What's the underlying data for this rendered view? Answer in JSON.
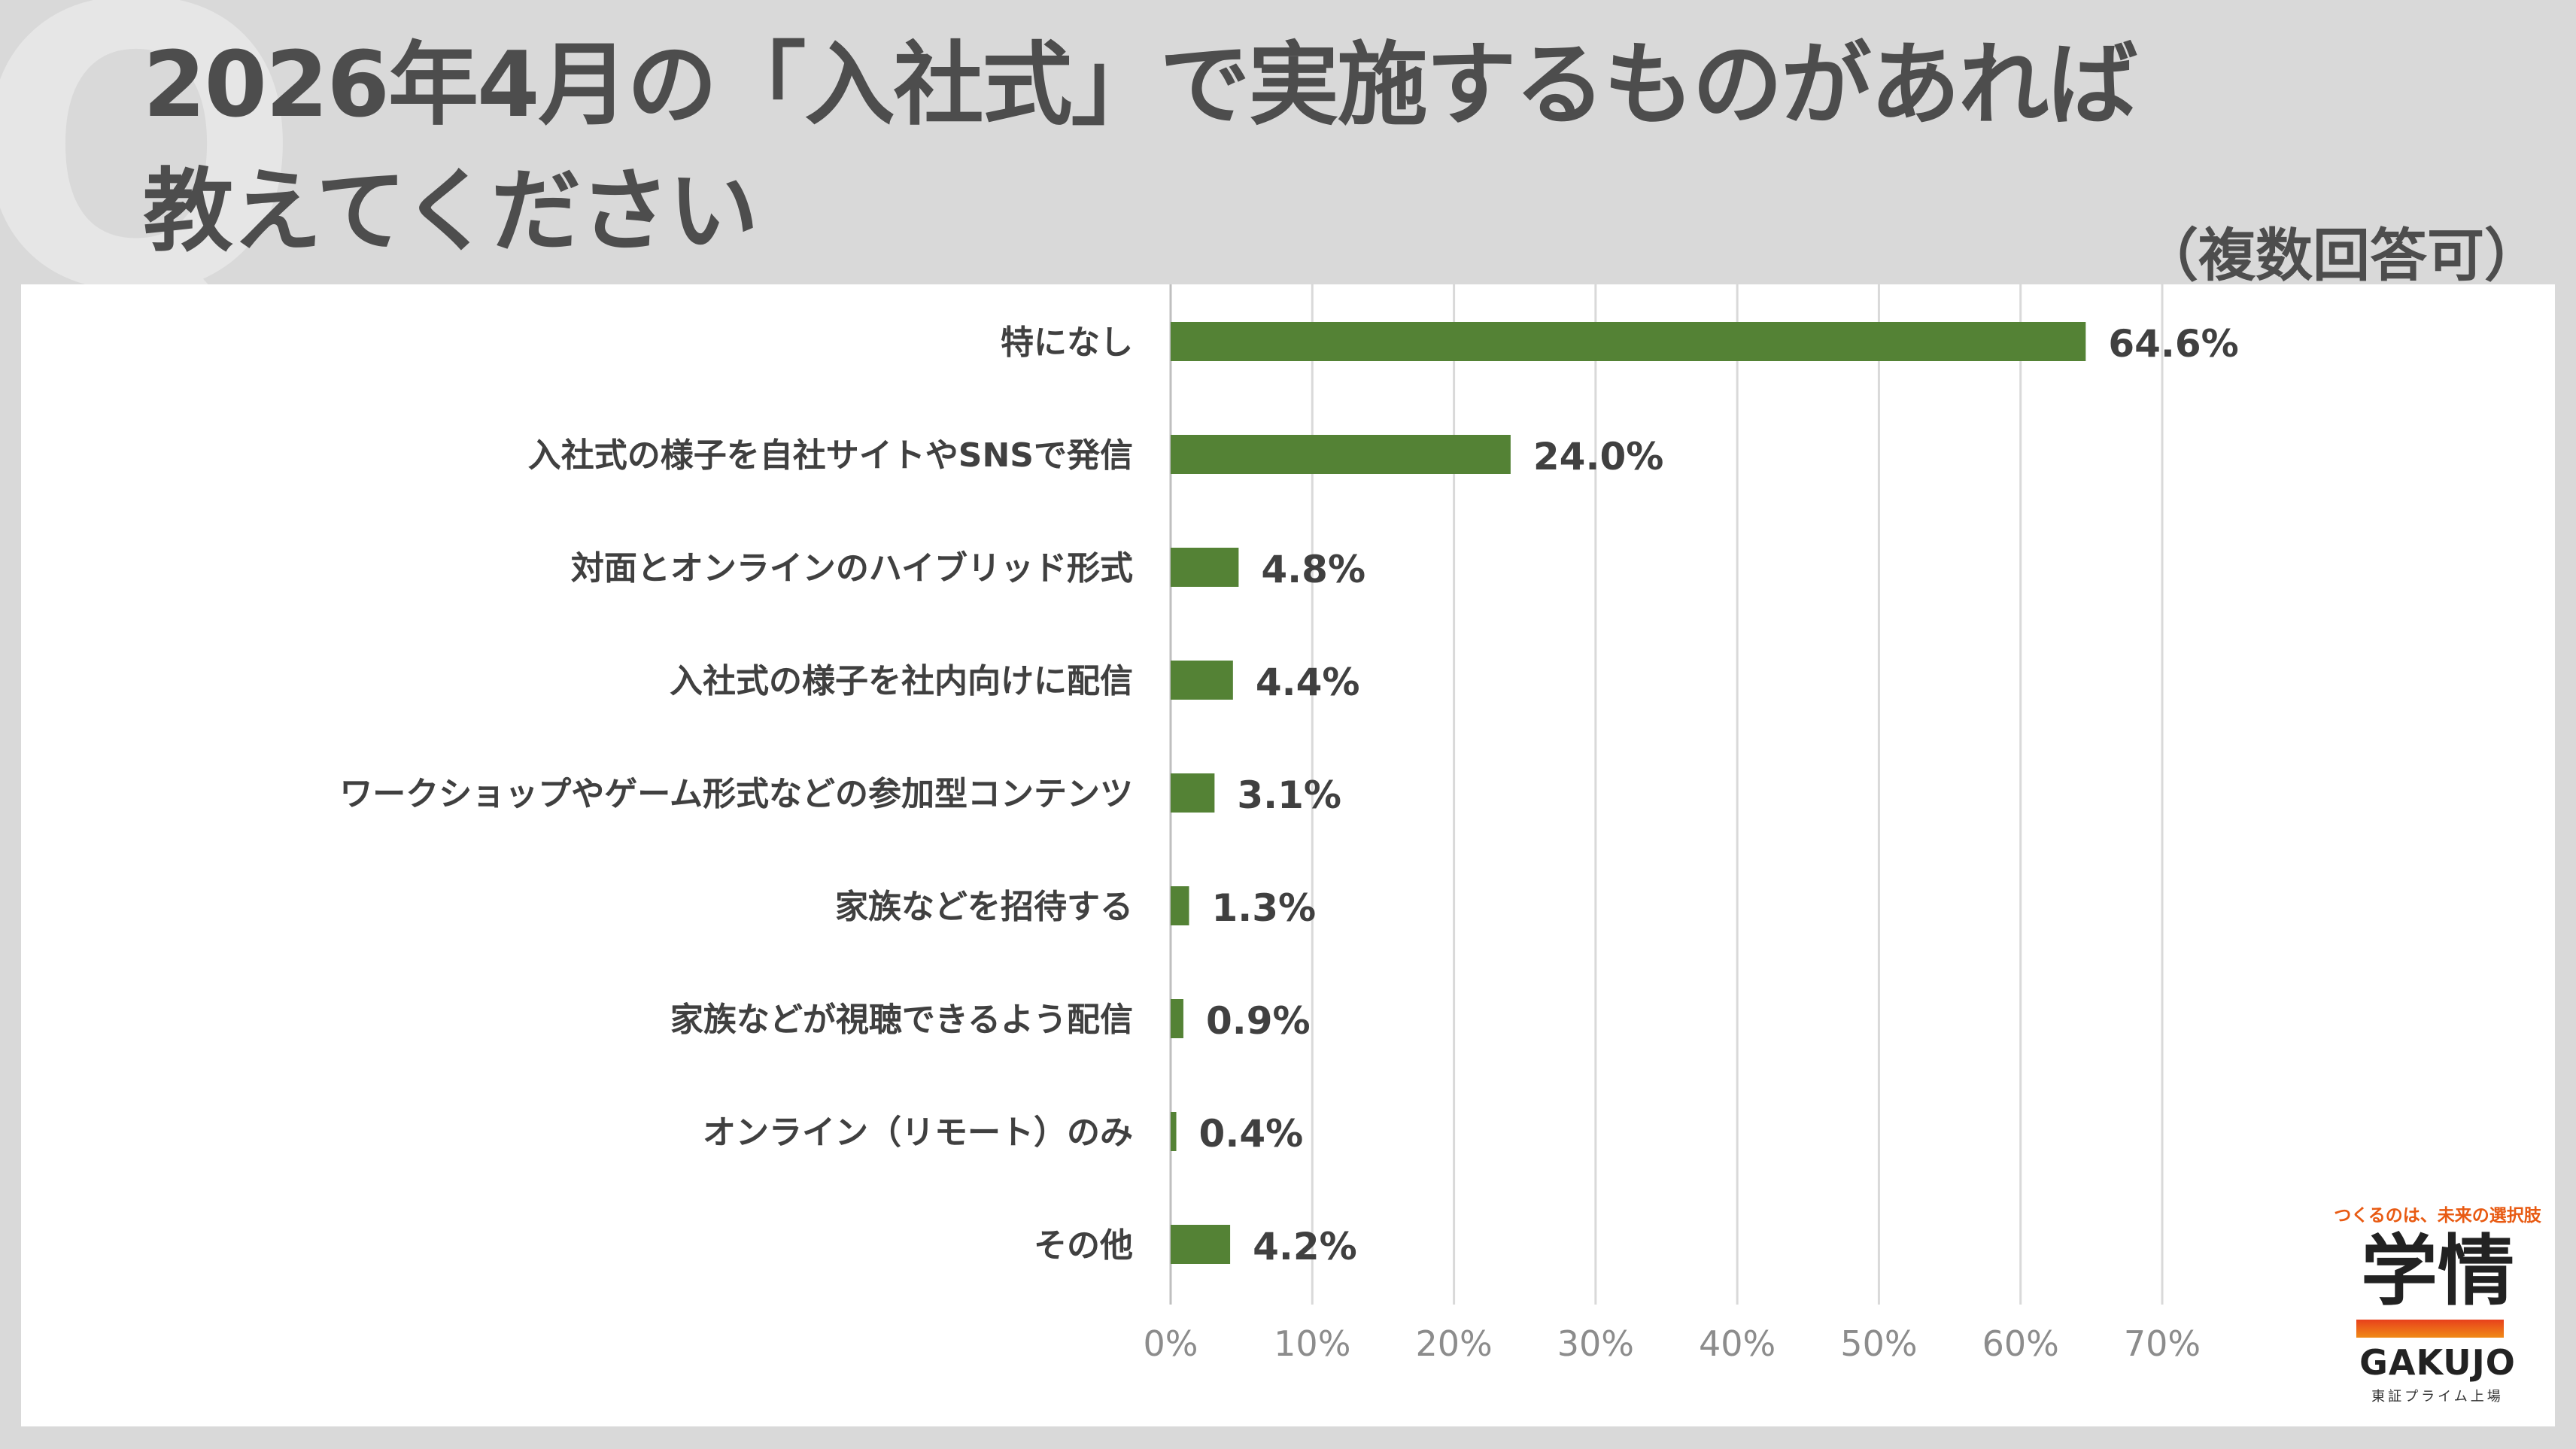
{
  "background_letter": "Q",
  "title_line1": "2026年4月の「入社式」で実施するものがあれば",
  "title_line2": "教えてください",
  "subtitle": "（複数回答可）",
  "colors": {
    "bar": "#548235",
    "grid": "#d9d9d9",
    "text": "#404040"
  },
  "chart_data": {
    "type": "bar",
    "orientation": "horizontal",
    "categories": [
      "特になし",
      "入社式の様子を自社サイトやSNSで発信",
      "対面とオンラインのハイブリッド形式",
      "入社式の様子を社内向けに配信",
      "ワークショップやゲーム形式などの参加型コンテンツ",
      "家族などを招待する",
      "家族などが視聴できるよう配信",
      "オンライン（リモート）のみ",
      "その他"
    ],
    "values": [
      64.6,
      24.0,
      4.8,
      4.4,
      3.1,
      1.3,
      0.9,
      0.4,
      4.2
    ],
    "value_labels": [
      "64.6%",
      "24.0%",
      "4.8%",
      "4.4%",
      "3.1%",
      "1.3%",
      "0.9%",
      "0.4%",
      "4.2%"
    ],
    "xlim": [
      0,
      70
    ],
    "ticks": [
      0,
      10,
      20,
      30,
      40,
      50,
      60,
      70
    ],
    "tick_labels": [
      "0%",
      "10%",
      "20%",
      "30%",
      "40%",
      "50%",
      "60%",
      "70%"
    ],
    "grid": true,
    "legend": "none"
  },
  "logo": {
    "tagline": "つくるのは、未来の選択肢",
    "name_jp": "学情",
    "name_en": "GAKUJO",
    "listing": "東証プライム上場"
  }
}
